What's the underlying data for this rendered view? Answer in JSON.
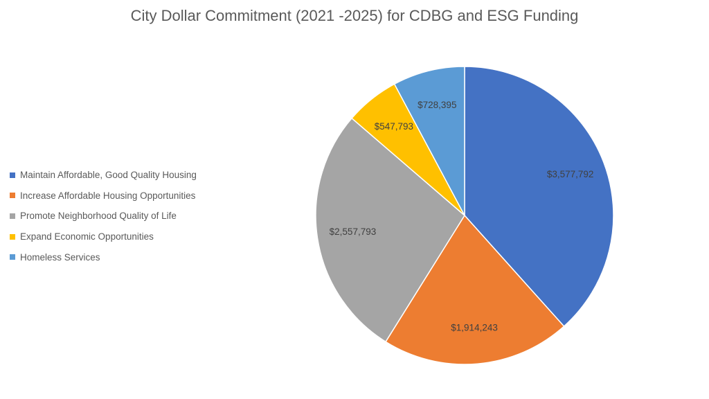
{
  "chart_data": {
    "type": "pie",
    "title": "City Dollar Commitment (2021 -2025) for CDBG and ESG Funding",
    "legend_position": "left",
    "slices": [
      {
        "name": "Maintain Affordable, Good Quality Housing",
        "value": 3577792,
        "label": "$3,577,792",
        "color": "#4472C4"
      },
      {
        "name": "Increase Affordable Housing Opportunities",
        "value": 1914243,
        "label": "$1,914,243",
        "color": "#ED7D31"
      },
      {
        "name": "Promote Neighborhood Quality of Life",
        "value": 2557793,
        "label": "$2,557,793",
        "color": "#A5A5A5"
      },
      {
        "name": "Expand Economic Opportunities",
        "value": 547793,
        "label": "$547,793",
        "color": "#FFC000"
      },
      {
        "name": "Homeless Services",
        "value": 728395,
        "label": "$728,395",
        "color": "#5B9BD5"
      }
    ]
  }
}
